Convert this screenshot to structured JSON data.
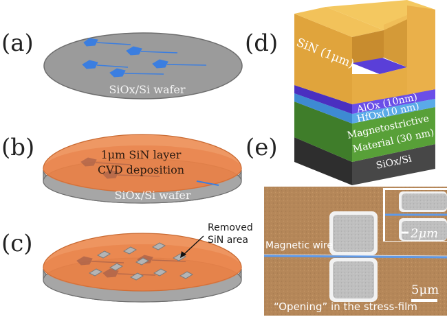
{
  "panels": {
    "a": {
      "label": "(a)",
      "wafer_label": "SiOx/Si wafer"
    },
    "b": {
      "label": "(b)",
      "layer_line1": "1μm SiN layer",
      "layer_line2": "CVD deposition",
      "wafer_label": "SiOx/Si wafer"
    },
    "c": {
      "label": "(c)",
      "callout_line1": "Removed",
      "callout_line2": "SiN area"
    },
    "d": {
      "label": "(d)",
      "layers": {
        "sin": "SiN (1μm)",
        "alox": "AlOx (10nm)",
        "hfox": "HfOx(10 nm)",
        "magneto_line1": "Magnetostrictive",
        "magneto_line2": "Material (30 nm)",
        "substrate": "SiOx/Si"
      }
    },
    "e": {
      "label": "(e)",
      "wire_label": "Magnetic wire",
      "opening_label": "“Opening” in the stress-film",
      "scale_main": "5μm",
      "scale_inset": "2μm"
    }
  },
  "colors": {
    "wafer_gray": "#9e9e9e",
    "sin_orange": "#e9844e",
    "wire_blue": "#3b78d8",
    "stack_sin": "#e8b04c",
    "stack_alox": "#5a3fd8",
    "stack_hfox": "#4a9be0",
    "stack_magneto": "#4e8c34",
    "stack_substrate": "#3a3a3a",
    "sem_background": "#b68a5c"
  }
}
